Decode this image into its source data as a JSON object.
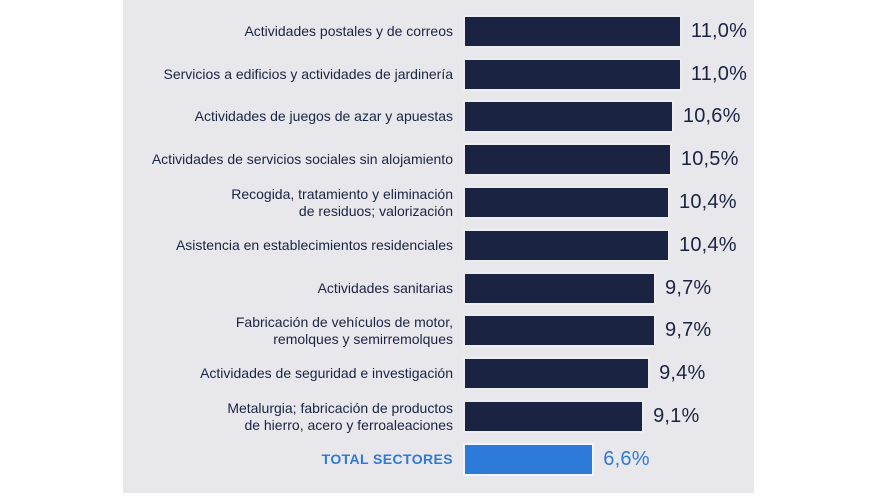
{
  "colors": {
    "page_background": "#ffffff",
    "panel_background": "#e8e8ec",
    "bar_navy": "#1a2342",
    "bar_highlight_blue": "#2e7ad8",
    "label_navy": "#1a2342",
    "label_highlight_blue": "#2e7ad8",
    "bar_border": "#ffffff"
  },
  "chart_data": {
    "type": "bar",
    "orientation": "horizontal",
    "title": "",
    "xlabel": "",
    "ylabel": "",
    "xlim": [
      0,
      11.5
    ],
    "grid": false,
    "legend": false,
    "value_format": "percent with comma decimal separator",
    "value_label_position": "right of bar end",
    "categories": [
      "Actividades postales y de correos",
      "Servicios a edificios y actividades de jardinería",
      "Actividades de juegos de azar y apuestas",
      "Actividades de servicios sociales sin alojamiento",
      "Recogida, tratamiento y eliminación\nde residuos; valorización",
      "Asistencia en establecimientos residenciales",
      "Actividades sanitarias",
      "Fabricación de vehículos de motor,\nremolques y semirremolques",
      "Actividades de seguridad e investigación",
      "Metalurgia; fabricación de productos\nde hierro, acero y ferroaleaciones",
      "TOTAL SECTORES"
    ],
    "values": [
      11.0,
      11.0,
      10.6,
      10.5,
      10.4,
      10.4,
      9.7,
      9.7,
      9.4,
      9.1,
      6.6
    ],
    "value_labels": [
      "11,0%",
      "11,0%",
      "10,6%",
      "10,5%",
      "10,4%",
      "10,4%",
      "9,7%",
      "9,7%",
      "9,4%",
      "9,1%",
      "6,6%"
    ],
    "highlight_index": 10,
    "highlight_category": "TOTAL SECTORES",
    "highlight_value_label": "6,6%"
  }
}
